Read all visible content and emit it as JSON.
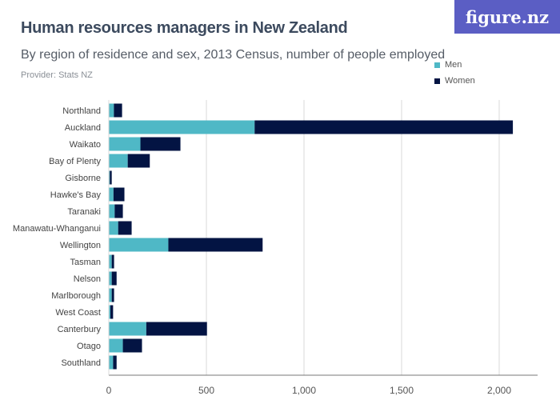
{
  "title": "Human resources managers in New Zealand",
  "subtitle": "By region of residence and sex, 2013 Census, number of people employed",
  "provider": "Provider: Stats NZ",
  "logo": "figure.nz",
  "colors": {
    "men": "#4fb8c6",
    "women": "#031443",
    "logo_bg": "#5b5ec4"
  },
  "chart_data": {
    "type": "bar",
    "orientation": "horizontal",
    "stacked": true,
    "categories": [
      "Northland",
      "Auckland",
      "Waikato",
      "Bay of Plenty",
      "Gisborne",
      "Hawke's Bay",
      "Taranaki",
      "Manawatu-Whanganui",
      "Wellington",
      "Tasman",
      "Nelson",
      "Marlborough",
      "West Coast",
      "Canterbury",
      "Otago",
      "Southland"
    ],
    "series": [
      {
        "name": "Men",
        "values": [
          26,
          747,
          162,
          97,
          5,
          24,
          30,
          48,
          305,
          15,
          15,
          15,
          8,
          192,
          72,
          22
        ]
      },
      {
        "name": "Women",
        "values": [
          42,
          1323,
          205,
          113,
          10,
          56,
          42,
          69,
          483,
          12,
          25,
          12,
          14,
          311,
          98,
          18
        ]
      }
    ],
    "xlim": [
      0,
      2200
    ],
    "xticks": [
      0,
      500,
      1000,
      1500,
      2000
    ],
    "xtick_labels": [
      "0",
      "500",
      "1,000",
      "1,500",
      "2,000"
    ],
    "grid": true,
    "legend": "top-right"
  }
}
